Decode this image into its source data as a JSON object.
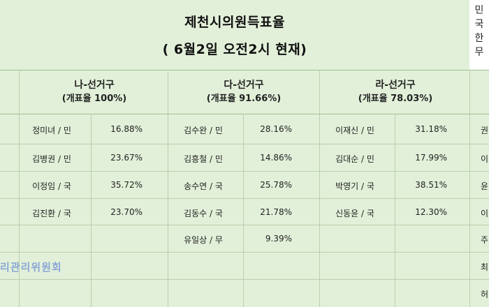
{
  "title": {
    "line1": "제천시의원득표율",
    "line2": "( 6월2일 오전2시 현재)"
  },
  "side_legend": [
    "민",
    "국",
    "한",
    "무"
  ],
  "districts": [
    {
      "name": "나-선거구",
      "rate": "(개표율 100%)",
      "candidates": [
        {
          "name": "정미녀 / 민",
          "pct": "16.88%"
        },
        {
          "name": "김병권 / 민",
          "pct": "23.67%"
        },
        {
          "name": "이정임 / 국",
          "pct": "35.72%"
        },
        {
          "name": "김진환 / 국",
          "pct": "23.70%"
        }
      ]
    },
    {
      "name": "다-선거구",
      "rate": "(개표율 91.66%)",
      "candidates": [
        {
          "name": "김수완 / 민",
          "pct": "28.16%"
        },
        {
          "name": "김흥철 / 민",
          "pct": "14.86%"
        },
        {
          "name": "송수연 / 국",
          "pct": "25.78%"
        },
        {
          "name": "김동수 / 국",
          "pct": "21.78%"
        },
        {
          "name": "유일상 / 무",
          "pct": "9.39%"
        }
      ]
    },
    {
      "name": "라-선거구",
      "rate": "(개표율 78.03%)",
      "candidates": [
        {
          "name": "이재신 / 민",
          "pct": "31.18%"
        },
        {
          "name": "김대순 / 민",
          "pct": "17.99%"
        },
        {
          "name": "박영기 / 국",
          "pct": "38.51%"
        },
        {
          "name": "신동윤 / 국",
          "pct": "12.30%"
        }
      ]
    }
  ],
  "cutoff_column": [
    "권",
    "이",
    "윤",
    "이",
    "주",
    "최",
    "허"
  ],
  "watermark": "리관리위원회",
  "colors": {
    "background": "#e2f0d9",
    "grid": "#b9cfae",
    "watermark": "#6f8fd6"
  }
}
